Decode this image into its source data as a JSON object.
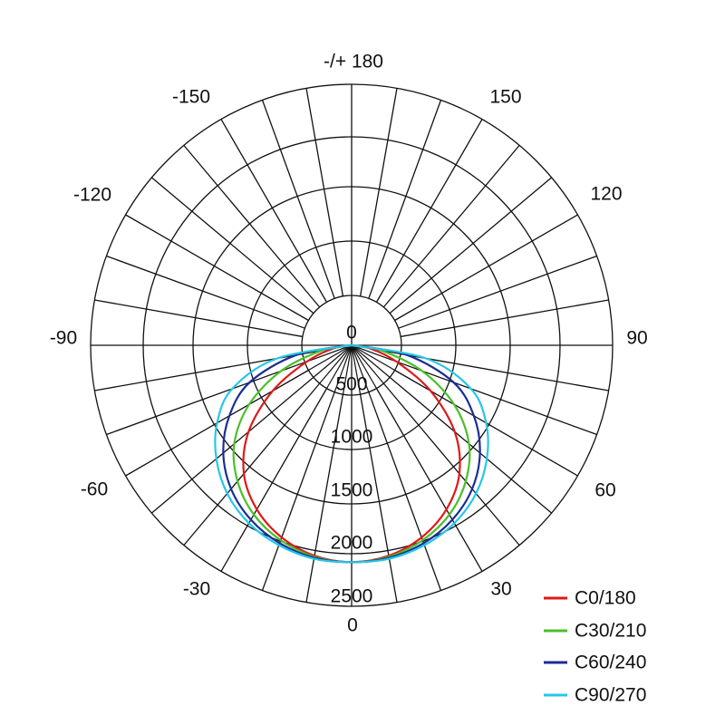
{
  "chart_data": {
    "type": "polar",
    "angle_unit": "degrees",
    "angle_labels": [
      "0",
      "30",
      "60",
      "90",
      "120",
      "150",
      "-/+ 180",
      "-150",
      "-120",
      "-90",
      "-60",
      "-30"
    ],
    "radial_labels": [
      "0",
      "500",
      "1000",
      "1500",
      "2000",
      "2500"
    ],
    "radial_ticks": [
      0,
      500,
      1000,
      1500,
      2000,
      2500
    ],
    "rlim": [
      0,
      2500
    ],
    "minor_angle_step": 10,
    "grid": true,
    "legend_position": "bottom-right",
    "series": [
      {
        "name": "C0/180",
        "color": "#e01818",
        "gamma": [
          0,
          10,
          20,
          30,
          40,
          50,
          60,
          70,
          80,
          90
        ],
        "right": [
          2080,
          2050,
          1960,
          1810,
          1590,
          1280,
          880,
          480,
          190,
          0
        ],
        "left": [
          2080,
          2050,
          1960,
          1810,
          1590,
          1280,
          880,
          480,
          190,
          0
        ]
      },
      {
        "name": "C30/210",
        "color": "#4cbf2a",
        "gamma": [
          0,
          10,
          20,
          30,
          40,
          50,
          60,
          70,
          80,
          90
        ],
        "right": [
          2080,
          2060,
          1990,
          1870,
          1690,
          1450,
          1130,
          730,
          300,
          0
        ],
        "left": [
          2080,
          2060,
          1990,
          1870,
          1690,
          1450,
          1130,
          730,
          300,
          0
        ]
      },
      {
        "name": "C60/240",
        "color": "#1a2d96",
        "gamma": [
          0,
          10,
          20,
          30,
          40,
          50,
          60,
          70,
          80,
          90
        ],
        "right": [
          2080,
          2070,
          2020,
          1930,
          1790,
          1590,
          1340,
          1040,
          560,
          0
        ],
        "left": [
          2080,
          2070,
          2020,
          1930,
          1790,
          1590,
          1340,
          1040,
          560,
          0
        ]
      },
      {
        "name": "C90/270",
        "color": "#27c6e8",
        "gamma": [
          0,
          10,
          20,
          30,
          40,
          50,
          60,
          70,
          80,
          90
        ],
        "right": [
          2080,
          2080,
          2040,
          1970,
          1850,
          1680,
          1470,
          1210,
          740,
          0
        ],
        "left": [
          2080,
          2080,
          2040,
          1970,
          1850,
          1680,
          1470,
          1210,
          740,
          0
        ]
      }
    ]
  }
}
